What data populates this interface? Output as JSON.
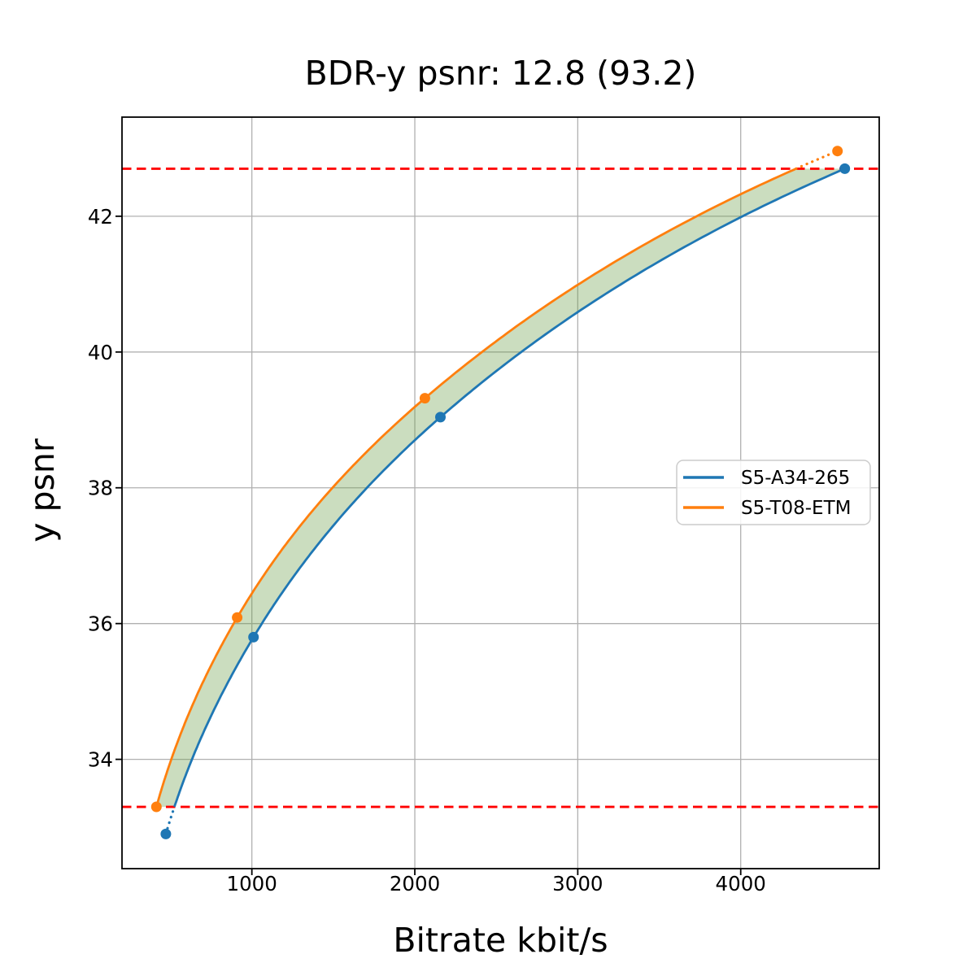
{
  "title": "BDR-y psnr: 12.8 (93.2)",
  "chart_data": {
    "type": "line",
    "title": "BDR-y psnr: 12.8 (93.2)",
    "xlabel": "Bitrate kbit/s",
    "ylabel": "y psnr",
    "xlim": [
      203,
      4850
    ],
    "ylim": [
      32.39,
      43.46
    ],
    "x_ticks": [
      1000,
      2000,
      3000,
      4000
    ],
    "y_ticks": [
      34,
      36,
      38,
      40,
      42
    ],
    "grid": true,
    "legend_position": "center right",
    "series": [
      {
        "name": "S5-A34-265",
        "color": "#1f77b4",
        "x_bitrate_kbits": [
          472,
          1010,
          2157,
          4639
        ],
        "y_psnr": [
          32.9,
          35.8,
          39.04,
          42.7
        ]
      },
      {
        "name": "S5-T08-ETM",
        "color": "#ff7f0e",
        "x_bitrate_kbits": [
          414,
          910,
          2062,
          4594
        ],
        "y_psnr": [
          33.3,
          36.09,
          39.32,
          42.96
        ]
      }
    ],
    "overlap_interval_psnr": [
      33.3,
      42.7
    ],
    "reference_lines": [
      {
        "y": 33.3,
        "color": "#ff0000",
        "style": "dashed"
      },
      {
        "y": 42.7,
        "color": "#ff0000",
        "style": "dashed"
      }
    ],
    "fill_between": {
      "color": "#6a9e49",
      "opacity": 0.35
    }
  }
}
